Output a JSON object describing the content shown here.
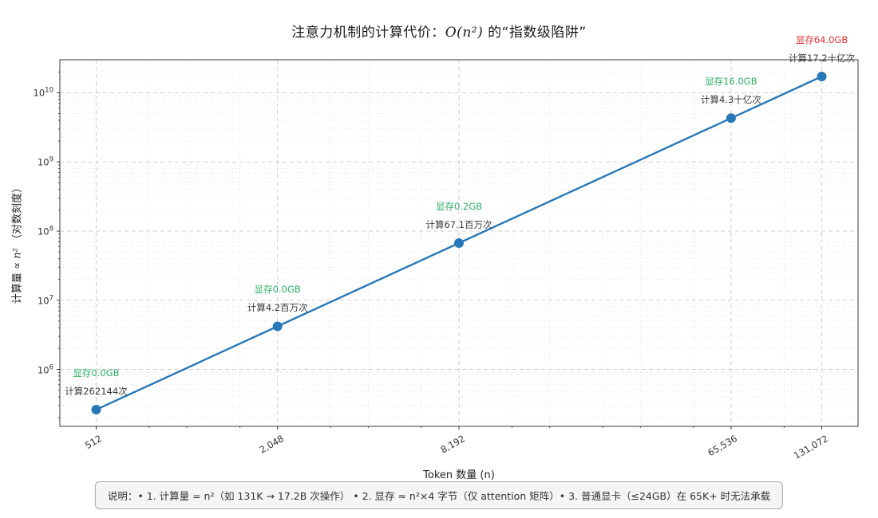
{
  "chart_data": {
    "type": "line",
    "title_parts": {
      "prefix": "注意力机制的计算代价：",
      "math": "O(n²)",
      "suffix": " 的“指数级陷阱”"
    },
    "title": "注意力机制的计算代价：O(n²) 的“指数级陷阱”",
    "xlabel": "Token 数量 (n)",
    "ylabel_parts": {
      "prefix": "计算量 ∝ ",
      "math": "n²",
      "suffix": " （对数刻度）"
    },
    "x": [
      512,
      2048,
      8192,
      65536,
      131072
    ],
    "x_tick_labels": [
      "512",
      "2,048",
      "8,192",
      "65,536",
      "131,072"
    ],
    "y": [
      262144,
      4194304,
      67108864,
      4294967296,
      17179869184
    ],
    "y_tick_exponents": [
      6,
      7,
      8,
      9,
      10
    ],
    "x_scale": "log2",
    "y_scale": "log10",
    "x_range": [
      388,
      172960
    ],
    "y_range": [
      150000,
      30000000000
    ],
    "grid": true,
    "legend": false,
    "line_color": "#2878b8",
    "compute_label_color": "#3a3a3a",
    "annotations": [
      {
        "compute": "计算262144次",
        "memory": "显存0.0GB",
        "memory_color": "#2eaf64"
      },
      {
        "compute": "计算4.2百万次",
        "memory": "显存0.0GB",
        "memory_color": "#2eaf64"
      },
      {
        "compute": "计算67.1百万次",
        "memory": "显存0.2GB",
        "memory_color": "#2eaf64"
      },
      {
        "compute": "计算4.3十亿次",
        "memory": "显存16.0GB",
        "memory_color": "#2eaf64"
      },
      {
        "compute": "计算17.2十亿次",
        "memory": "显存64.0GB",
        "memory_color": "#e02f2f"
      }
    ]
  },
  "note": "说明：• 1. 计算量 = n²（如 131K → 17.2B 次操作） • 2. 显存 ≈ n²×4 字节（仅 attention 矩阵）• 3. 普通显卡（≤24GB）在 65K+ 时无法承载"
}
